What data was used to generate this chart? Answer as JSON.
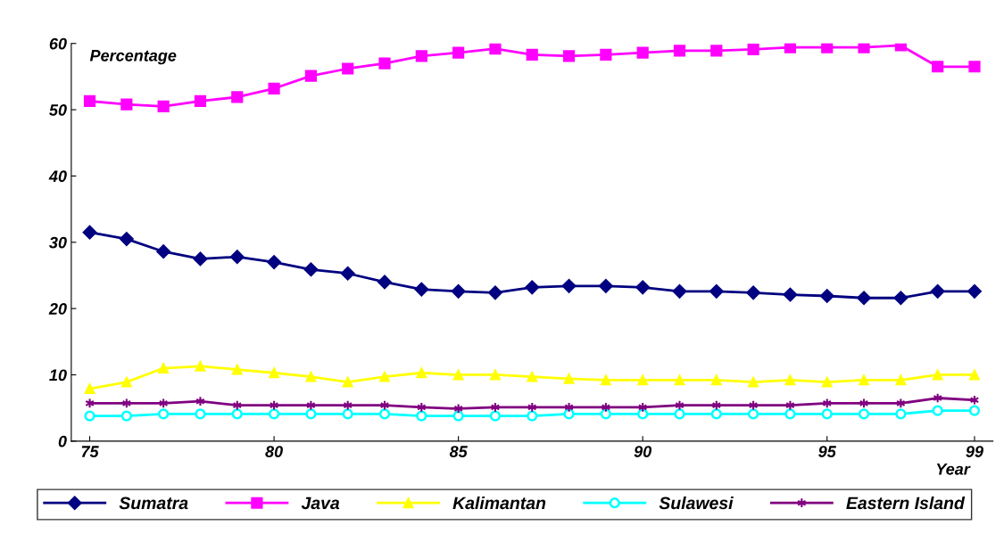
{
  "chart_data": {
    "type": "line",
    "ylabel": "Percentage",
    "xlabel": "Year",
    "x": [
      75,
      76,
      77,
      78,
      79,
      80,
      81,
      82,
      83,
      84,
      85,
      86,
      87,
      88,
      89,
      90,
      91,
      92,
      93,
      94,
      95,
      96,
      97,
      98,
      99
    ],
    "xlim": [
      74.5,
      99.5
    ],
    "xticks": [
      75,
      80,
      85,
      90,
      95,
      99
    ],
    "ylim": [
      0,
      60
    ],
    "yticks": [
      0,
      10,
      20,
      30,
      40,
      50,
      60
    ],
    "grid": false,
    "legend": "bottom",
    "series": [
      {
        "name": "Sumatra",
        "color": "#000080",
        "marker": "diamond",
        "values": [
          31.5,
          30.5,
          28.6,
          27.5,
          27.8,
          27.0,
          25.9,
          25.3,
          24.0,
          22.9,
          22.6,
          22.4,
          23.2,
          23.4,
          23.4,
          23.2,
          22.6,
          22.6,
          22.4,
          22.1,
          21.9,
          21.6,
          21.6,
          22.6,
          22.6
        ]
      },
      {
        "name": "Java",
        "color": "#ff00ff",
        "marker": "square",
        "values": [
          51.3,
          50.8,
          50.5,
          51.3,
          51.9,
          53.2,
          55.1,
          56.2,
          57.0,
          58.1,
          58.6,
          59.2,
          58.3,
          58.1,
          58.3,
          58.6,
          58.9,
          58.9,
          59.1,
          59.4,
          59.4,
          59.4,
          59.7,
          56.5,
          56.5
        ]
      },
      {
        "name": "Kalimantan",
        "color": "#ffff00",
        "marker": "triangle",
        "values": [
          7.9,
          8.9,
          11.0,
          11.3,
          10.8,
          10.3,
          9.7,
          8.9,
          9.7,
          10.3,
          10.0,
          10.0,
          9.7,
          9.4,
          9.2,
          9.2,
          9.2,
          9.2,
          8.9,
          9.2,
          8.9,
          9.2,
          9.2,
          10.0,
          10.0
        ]
      },
      {
        "name": "Sulawesi",
        "color": "#00ffff",
        "marker": "circle",
        "values": [
          3.8,
          3.8,
          4.1,
          4.1,
          4.1,
          4.1,
          4.1,
          4.1,
          4.1,
          3.8,
          3.8,
          3.8,
          3.8,
          4.1,
          4.1,
          4.1,
          4.1,
          4.1,
          4.1,
          4.1,
          4.1,
          4.1,
          4.1,
          4.6,
          4.6
        ]
      },
      {
        "name": "Eastern Island",
        "color": "#800080",
        "marker": "cross",
        "values": [
          5.7,
          5.7,
          5.7,
          6.0,
          5.4,
          5.4,
          5.4,
          5.4,
          5.4,
          5.1,
          4.9,
          5.1,
          5.1,
          5.1,
          5.1,
          5.1,
          5.4,
          5.4,
          5.4,
          5.4,
          5.7,
          5.7,
          5.7,
          6.5,
          6.2
        ]
      }
    ]
  }
}
